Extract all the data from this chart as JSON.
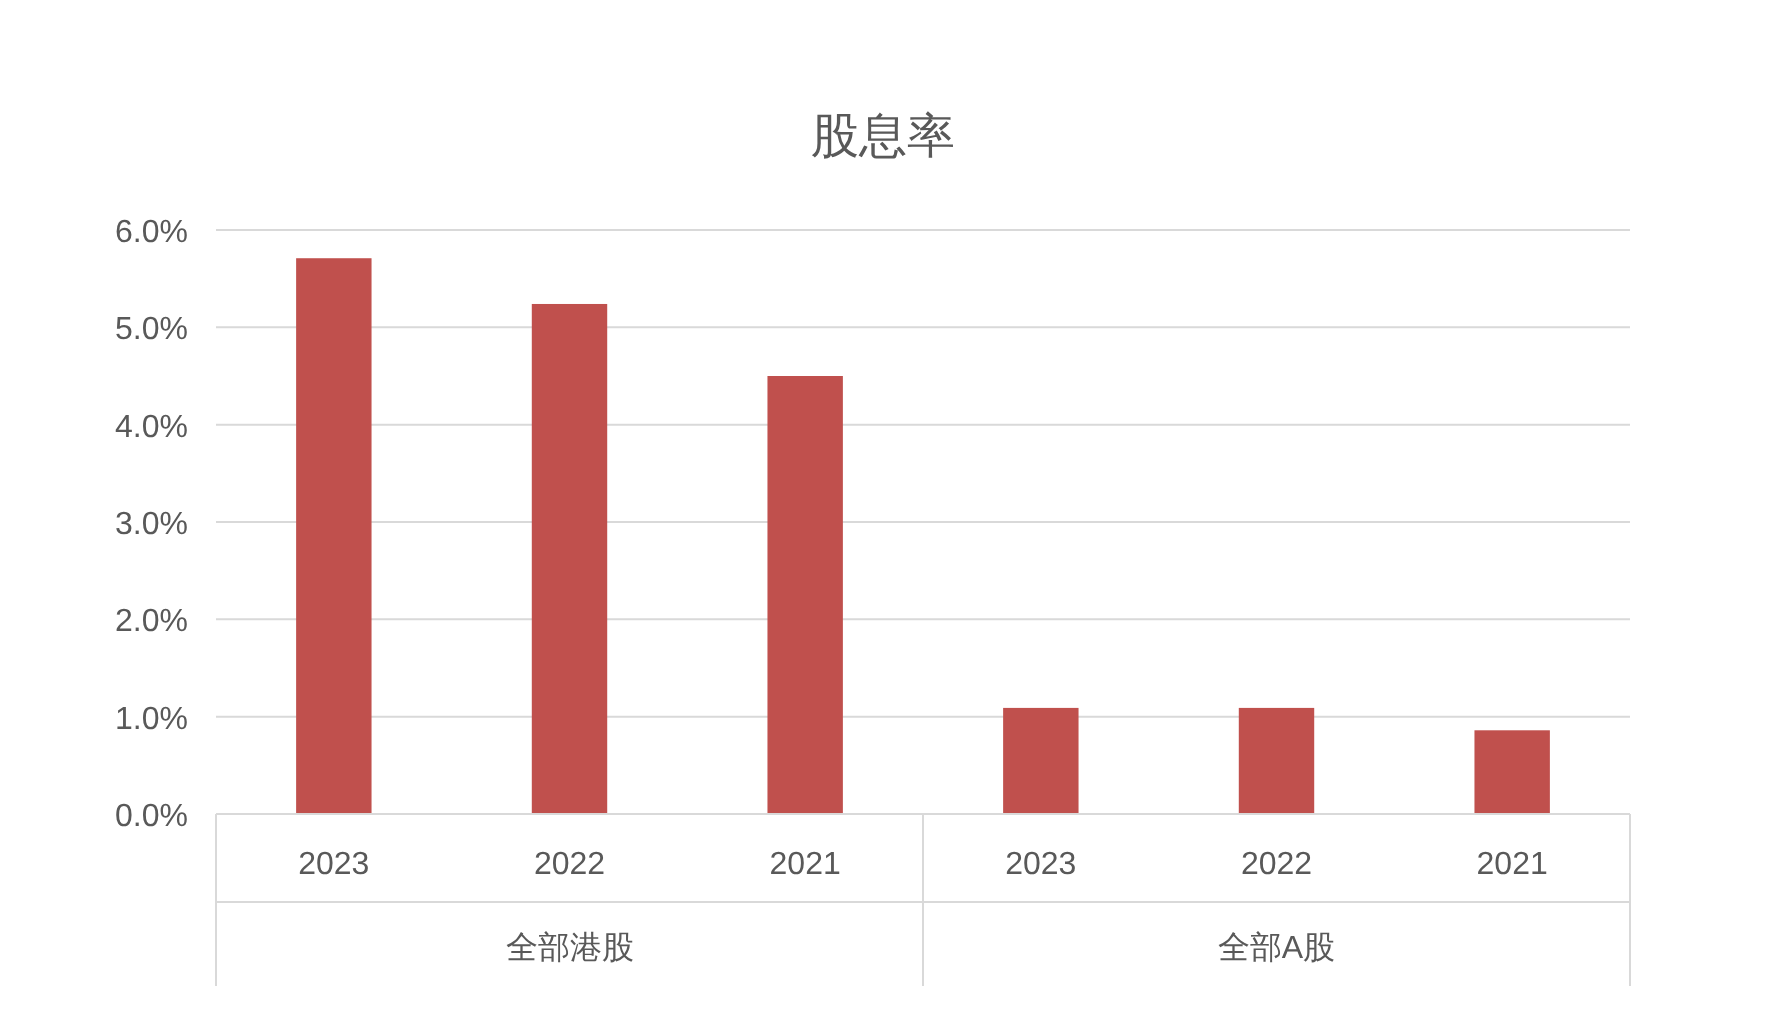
{
  "chart_data": {
    "type": "bar",
    "title": "股息率",
    "categories": [
      "2023",
      "2022",
      "2021",
      "2023",
      "2022",
      "2021"
    ],
    "values": [
      5.71,
      5.24,
      4.5,
      1.09,
      1.09,
      0.86
    ],
    "color": "#c0504d",
    "ylim": [
      0,
      6
    ],
    "yticks": [
      {
        "value": 0,
        "label": "0.0%"
      },
      {
        "value": 1,
        "label": "1.0%"
      },
      {
        "value": 2,
        "label": "2.0%"
      },
      {
        "value": 3,
        "label": "3.0%"
      },
      {
        "value": 4,
        "label": "4.0%"
      },
      {
        "value": 5,
        "label": "5.0%"
      },
      {
        "value": 6,
        "label": "6.0%"
      }
    ],
    "grid": "y",
    "annotations": [
      "全部港股",
      "全部A股"
    ]
  }
}
